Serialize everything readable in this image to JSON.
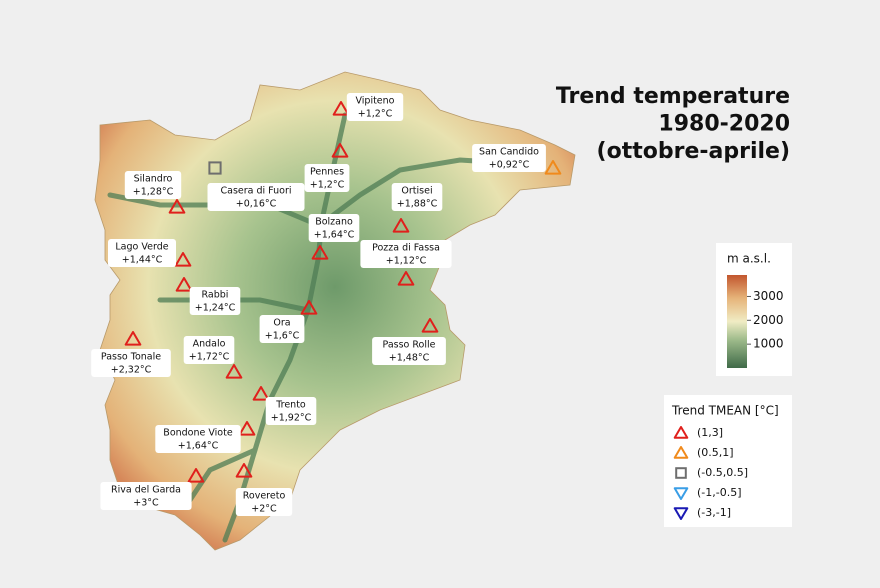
{
  "title_lines": [
    "Trend temperature",
    "1980-2020",
    "(ottobre-aprile)"
  ],
  "elevation_legend": {
    "title": "m a.s.l.",
    "ticks": [
      1000,
      2000,
      3000
    ],
    "lim": [
      0,
      3900
    ]
  },
  "trend_legend": {
    "title": "Trend TMEAN [°C]",
    "items": [
      {
        "label": "(1,3]",
        "color": "#e0201c",
        "marker": "triangle-up"
      },
      {
        "label": "(0.5,1]",
        "color": "#f08a1c",
        "marker": "triangle-up"
      },
      {
        "label": "(-0.5,0.5]",
        "color": "#6e6e6e",
        "marker": "square"
      },
      {
        "label": "(-1,-0.5]",
        "color": "#3a9ee6",
        "marker": "triangle-down"
      },
      {
        "label": "(-3,-1]",
        "color": "#1a1ab4",
        "marker": "triangle-down"
      }
    ]
  },
  "stations": [
    {
      "name": "Vipiteno",
      "trend": "+1,2°C"
    },
    {
      "name": "Pennes",
      "trend": "+1,2°C"
    },
    {
      "name": "San Candido",
      "trend": "+0,92°C"
    },
    {
      "name": "Silandro",
      "trend": "+1,28°C"
    },
    {
      "name": "Casera di Fuori",
      "trend": "+0,16°C"
    },
    {
      "name": "Ortisei",
      "trend": "+1,88°C"
    },
    {
      "name": "Bolzano",
      "trend": "+1,64°C"
    },
    {
      "name": "Lago Verde",
      "trend": "+1,44°C"
    },
    {
      "name": "Pozza di Fassa",
      "trend": "+1,12°C"
    },
    {
      "name": "Rabbi",
      "trend": "+1,24°C"
    },
    {
      "name": "Ora",
      "trend": "+1,6°C"
    },
    {
      "name": "Passo Tonale",
      "trend": "+2,32°C"
    },
    {
      "name": "Andalo",
      "trend": "+1,72°C"
    },
    {
      "name": "Passo Rolle",
      "trend": "+1,48°C"
    },
    {
      "name": "Trento",
      "trend": "+1,92°C"
    },
    {
      "name": "Bondone Viote",
      "trend": "+1,64°C"
    },
    {
      "name": "Riva del Garda",
      "trend": "+3°C"
    },
    {
      "name": "Rovereto",
      "trend": "+2°C"
    }
  ]
}
